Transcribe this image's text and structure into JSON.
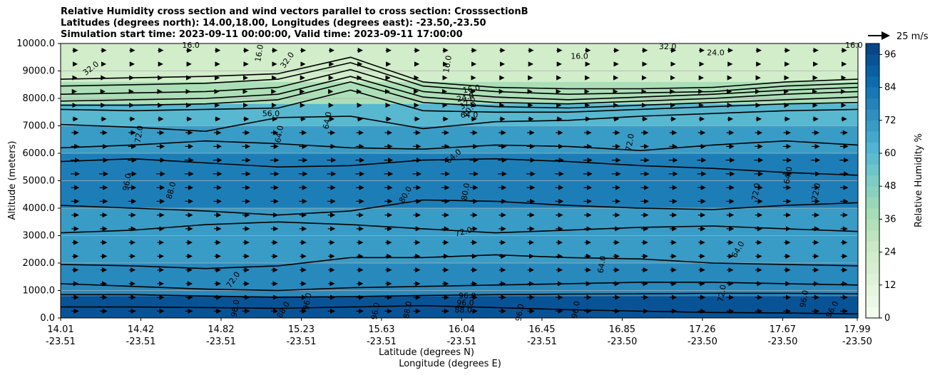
{
  "chart_data": {
    "type": "heatmap",
    "subtype": "filled-contour cross section with contour lines and wind vectors",
    "title_lines": [
      "Relative Humidity cross section and wind vectors parallel to cross section: CrosssectionB",
      "Latitudes (degrees north): 14.00,18.00, Longitudes (degrees east): -23.50,-23.50",
      "Simulation start time: 2023-09-11 00:00:00, Valid time: 2023-09-11 17:00:00"
    ],
    "ylabel": "Altitude (meters)",
    "xlabel_lat": "Latitude (degrees N)",
    "xlabel_lon": "Longitude (degrees E)",
    "ylim": [
      0,
      10000
    ],
    "yticks": [
      0,
      1000,
      2000,
      3000,
      4000,
      5000,
      6000,
      7000,
      8000,
      9000,
      10000
    ],
    "ytick_labels": [
      "0.0",
      "1000.0",
      "2000.0",
      "3000.0",
      "4000.0",
      "5000.0",
      "6000.0",
      "7000.0",
      "8000.0",
      "9000.0",
      "10000.0"
    ],
    "xticks": [
      {
        "lat": "14.01",
        "lon": "-23.51"
      },
      {
        "lat": "14.42",
        "lon": "-23.51"
      },
      {
        "lat": "14.82",
        "lon": "-23.51"
      },
      {
        "lat": "15.23",
        "lon": "-23.51"
      },
      {
        "lat": "15.63",
        "lon": "-23.51"
      },
      {
        "lat": "16.04",
        "lon": "-23.51"
      },
      {
        "lat": "16.45",
        "lon": "-23.51"
      },
      {
        "lat": "16.85",
        "lon": "-23.50"
      },
      {
        "lat": "17.26",
        "lon": "-23.50"
      },
      {
        "lat": "17.67",
        "lon": "-23.50"
      },
      {
        "lat": "17.99",
        "lon": "-23.50"
      }
    ],
    "x_fraction_of_last_tick": 0.9999,
    "grid": "horizontal",
    "colorbar": {
      "label": "Relative Humidity %",
      "min": 0,
      "max": 100,
      "step": 4,
      "tick_values": [
        0,
        12,
        24,
        36,
        48,
        60,
        72,
        84,
        96
      ],
      "colormap": "GnBu",
      "stops": [
        "#f7fcf0",
        "#e0f3db",
        "#ccebc5",
        "#a8ddb5",
        "#7bccc4",
        "#4eb3d3",
        "#2b8cbe",
        "#0868ac",
        "#084081"
      ]
    },
    "quiver_key": {
      "label": "25 m/s",
      "speed": 25
    },
    "humidity_layers": [
      {
        "altitude_top": 10000,
        "altitude_bottom": 8600,
        "rh": 22
      },
      {
        "altitude_top": 8600,
        "altitude_bottom": 7800,
        "rh": 36
      },
      {
        "altitude_top": 7800,
        "altitude_bottom": 7000,
        "rh": 60
      },
      {
        "altitude_top": 7000,
        "altitude_bottom": 6000,
        "rh": 70
      },
      {
        "altitude_top": 6000,
        "altitude_bottom": 4000,
        "rh": 80
      },
      {
        "altitude_top": 4000,
        "altitude_bottom": 2000,
        "rh": 70
      },
      {
        "altitude_top": 2000,
        "altitude_bottom": 800,
        "rh": 76
      },
      {
        "altitude_top": 800,
        "altitude_bottom": 0,
        "rh": 94
      }
    ],
    "contour_levels": [
      16,
      24,
      32,
      40,
      48,
      56,
      64,
      72,
      80,
      88,
      96
    ],
    "contour_labels": [
      {
        "text": "16.0",
        "lat": 14.66,
        "alt": 9950,
        "rot": 0
      },
      {
        "text": "32.0",
        "lat": 14.16,
        "alt": 9100,
        "rot": -38
      },
      {
        "text": "16.0",
        "lat": 15.0,
        "alt": 9650,
        "rot": -80
      },
      {
        "text": "32.0",
        "lat": 15.14,
        "alt": 9400,
        "rot": -55
      },
      {
        "text": "16.0",
        "lat": 15.94,
        "alt": 9250,
        "rot": -80
      },
      {
        "text": "16.0",
        "lat": 16.6,
        "alt": 9550,
        "rot": 0
      },
      {
        "text": "32.0",
        "lat": 17.04,
        "alt": 9900,
        "rot": 0
      },
      {
        "text": "24.0",
        "lat": 17.28,
        "alt": 9670,
        "rot": 0
      },
      {
        "text": "16.0",
        "lat": 17.97,
        "alt": 9950,
        "rot": 0
      },
      {
        "text": "16.0",
        "lat": 16.06,
        "alt": 8350,
        "rot": -10
      },
      {
        "text": "24.0",
        "lat": 16.03,
        "alt": 8050,
        "rot": -15
      },
      {
        "text": "32.0",
        "lat": 16.04,
        "alt": 7850,
        "rot": -35
      },
      {
        "text": "40.0",
        "lat": 16.05,
        "alt": 7600,
        "rot": -50
      },
      {
        "text": "64.0",
        "lat": 16.05,
        "alt": 7400,
        "rot": 0
      },
      {
        "text": "56.0",
        "lat": 15.06,
        "alt": 7450,
        "rot": 0
      },
      {
        "text": "64.0",
        "lat": 15.34,
        "alt": 7200,
        "rot": -80
      },
      {
        "text": "64.0",
        "lat": 15.1,
        "alt": 6700,
        "rot": -80
      },
      {
        "text": "72.0",
        "lat": 14.4,
        "alt": 6700,
        "rot": -80
      },
      {
        "text": "72.0",
        "lat": 16.85,
        "alt": 6400,
        "rot": -80
      },
      {
        "text": "64.0",
        "lat": 15.97,
        "alt": 5900,
        "rot": -40
      },
      {
        "text": "96.0",
        "lat": 14.34,
        "alt": 4950,
        "rot": -80
      },
      {
        "text": "88.0",
        "lat": 14.56,
        "alt": 4650,
        "rot": -75
      },
      {
        "text": "80.0",
        "lat": 15.73,
        "alt": 4500,
        "rot": -60
      },
      {
        "text": "80.0",
        "lat": 16.03,
        "alt": 4600,
        "rot": -80
      },
      {
        "text": "64.0",
        "lat": 17.64,
        "alt": 5200,
        "rot": -80
      },
      {
        "text": "72.0",
        "lat": 17.48,
        "alt": 4600,
        "rot": -80
      },
      {
        "text": "72.0",
        "lat": 17.78,
        "alt": 4600,
        "rot": -80
      },
      {
        "text": "72.0",
        "lat": 16.02,
        "alt": 3150,
        "rot": -15
      },
      {
        "text": "64.0",
        "lat": 16.71,
        "alt": 1950,
        "rot": -80
      },
      {
        "text": "64.0",
        "lat": 17.39,
        "alt": 2500,
        "rot": -60
      },
      {
        "text": "72.0",
        "lat": 14.87,
        "alt": 1400,
        "rot": -55
      },
      {
        "text": "96.0",
        "lat": 16.04,
        "alt": 820,
        "rot": 0
      },
      {
        "text": "96.0",
        "lat": 16.03,
        "alt": 560,
        "rot": 0
      },
      {
        "text": "88.0",
        "lat": 16.02,
        "alt": 300,
        "rot": 0
      },
      {
        "text": "96.0",
        "lat": 15.24,
        "alt": 600,
        "rot": -80
      },
      {
        "text": "96.0",
        "lat": 14.88,
        "alt": 350,
        "rot": -80
      },
      {
        "text": "88.0",
        "lat": 15.12,
        "alt": 300,
        "rot": -60
      },
      {
        "text": "96.0",
        "lat": 15.58,
        "alt": 250,
        "rot": -80
      },
      {
        "text": "88.0",
        "lat": 15.74,
        "alt": 300,
        "rot": -80
      },
      {
        "text": "96.0",
        "lat": 16.3,
        "alt": 200,
        "rot": -80
      },
      {
        "text": "96.0",
        "lat": 16.58,
        "alt": 300,
        "rot": -80
      },
      {
        "text": "72.0",
        "lat": 17.31,
        "alt": 900,
        "rot": -80
      },
      {
        "text": "96.0",
        "lat": 17.72,
        "alt": 700,
        "rot": -80
      },
      {
        "text": "96.0",
        "lat": 17.86,
        "alt": 320,
        "rot": -60
      }
    ],
    "contour_lines": [
      {
        "alt": [
          8700,
          8750,
          8800,
          8900,
          9500,
          8600,
          8400,
          8350,
          8350,
          8400,
          8600,
          8700
        ]
      },
      {
        "alt": [
          8450,
          8500,
          8550,
          8700,
          9300,
          8450,
          8250,
          8150,
          8200,
          8250,
          8450,
          8550
        ]
      },
      {
        "alt": [
          8150,
          8200,
          8250,
          8400,
          9050,
          8250,
          8050,
          7950,
          8050,
          8150,
          8300,
          8400
        ]
      },
      {
        "alt": [
          7900,
          7950,
          8000,
          8150,
          8800,
          8050,
          7850,
          7800,
          7900,
          8000,
          8150,
          8250
        ]
      },
      {
        "alt": [
          7750,
          7750,
          7800,
          7950,
          8600,
          7850,
          7700,
          7650,
          7750,
          7850,
          7950,
          8050
        ]
      },
      {
        "alt": [
          7600,
          7550,
          7600,
          7650,
          8300,
          7550,
          7500,
          7500,
          7600,
          7700,
          7800,
          7850
        ]
      },
      {
        "alt": [
          7050,
          6950,
          6800,
          7300,
          7350,
          6900,
          7150,
          7200,
          7350,
          7450,
          7550,
          7600
        ]
      },
      {
        "alt": [
          6200,
          6300,
          6450,
          6350,
          6200,
          6150,
          6300,
          6250,
          6100,
          6300,
          6450,
          6300
        ]
      },
      {
        "alt": [
          5700,
          5800,
          5650,
          5500,
          5550,
          5750,
          5800,
          5700,
          5550,
          5450,
          5300,
          5200
        ]
      },
      {
        "alt": [
          4100,
          4000,
          3900,
          3750,
          3900,
          4300,
          4250,
          4100,
          4000,
          3950,
          4100,
          4200
        ]
      },
      {
        "alt": [
          3100,
          3200,
          3400,
          3500,
          3400,
          3250,
          3100,
          3200,
          3300,
          3350,
          3250,
          3150
        ]
      },
      {
        "alt": [
          1950,
          1900,
          1800,
          1900,
          2200,
          2200,
          2300,
          2200,
          2150,
          2000,
          1950,
          1900
        ]
      },
      {
        "alt": [
          1250,
          1150,
          1050,
          1000,
          1100,
          1150,
          1200,
          1250,
          1300,
          1300,
          1250,
          1200
        ]
      },
      {
        "alt": [
          850,
          850,
          800,
          750,
          780,
          820,
          850,
          870,
          880,
          900,
          900,
          880
        ]
      },
      {
        "alt": [
          400,
          400,
          380,
          350,
          400,
          450,
          380,
          300,
          250,
          200,
          180,
          150
        ]
      }
    ],
    "wind": {
      "direction": "east (parallel to cross section)",
      "altitudes": [
        250,
        750,
        1250,
        1750,
        2250,
        2750,
        3250,
        3750,
        4250,
        4750,
        5250,
        5750,
        6250,
        6750,
        7250,
        7750,
        8250,
        8750,
        9250,
        9750
      ],
      "speeds": [
        8,
        8,
        7,
        7,
        7,
        7,
        8,
        8,
        9,
        9,
        10,
        10,
        9,
        8,
        6,
        4,
        3,
        4,
        5,
        6
      ],
      "columns": 28
    }
  }
}
